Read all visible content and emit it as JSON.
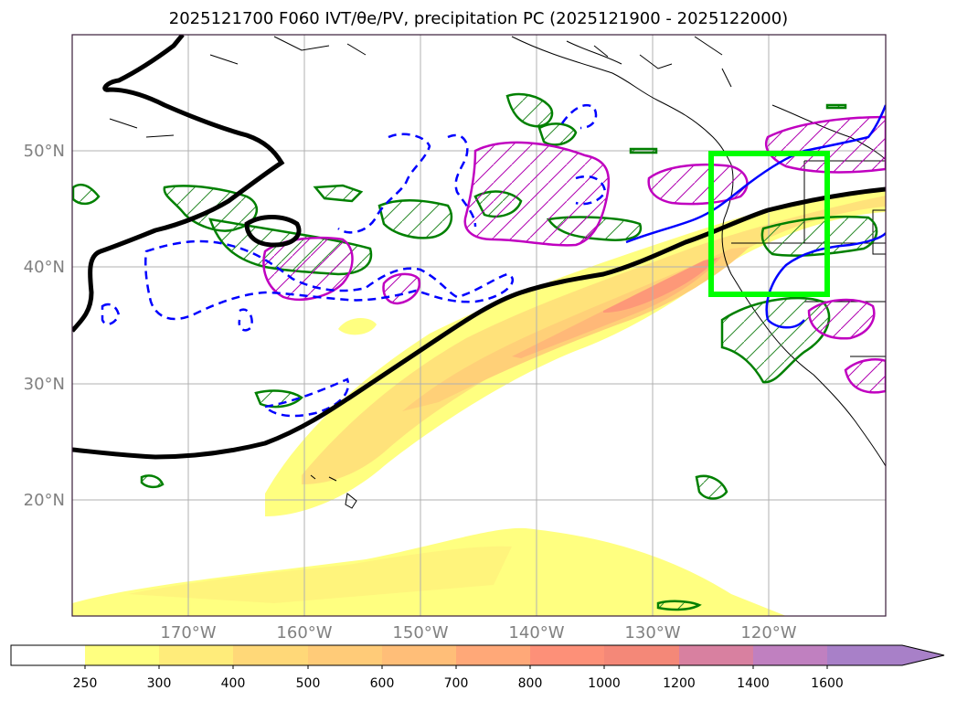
{
  "title": "2025121700 F060 IVT/θe/PV, precipitation PC (2025121900 - 2025122000)",
  "map": {
    "lat_labels": [
      "50°N",
      "40°N",
      "30°N",
      "20°N"
    ],
    "lon_labels": [
      "170°W",
      "160°W",
      "150°W",
      "140°W",
      "130°W",
      "120°W"
    ],
    "lat_range": [
      10,
      60
    ],
    "lon_range": [
      -180,
      -110
    ],
    "target_box": {
      "lon": [
        -125.2,
        -115
      ],
      "lat": [
        37.5,
        49.7
      ]
    },
    "colors": {
      "pv_contour": "#000000",
      "theta_e_neg": "#0000ff",
      "precip_green": "#008000",
      "precip_magenta": "#c000c0",
      "target_box": "#00ff00",
      "ivt_low": "#ffff80",
      "ivt_high": "#f08878"
    }
  },
  "colorbar": {
    "levels": [
      "250",
      "300",
      "400",
      "500",
      "600",
      "700",
      "800",
      "1000",
      "1200",
      "1400",
      "1600"
    ],
    "colors": [
      "#ffffff",
      "#ffff80",
      "#ffec7a",
      "#ffd878",
      "#ffcb78",
      "#ffbe78",
      "#ffa878",
      "#fd9078",
      "#f48878",
      "#d880a0",
      "#c080c0",
      "#a880c8"
    ]
  }
}
